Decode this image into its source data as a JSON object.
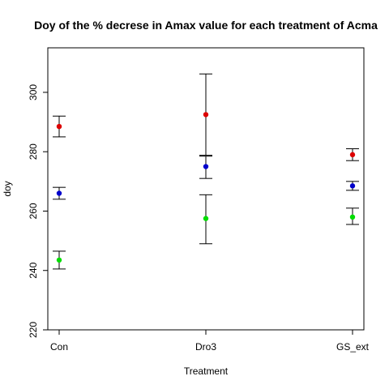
{
  "chart_data": {
    "type": "scatter",
    "title": "Doy of the % decrese in Amax value for each treatment of Acma",
    "xlabel": "Treatment",
    "ylabel": "doy",
    "categories": [
      "Con",
      "Dro3",
      "GS_ext"
    ],
    "ylim": [
      220,
      315
    ],
    "yticks": [
      220,
      240,
      260,
      280,
      300
    ],
    "grid": false,
    "legend": "none",
    "series": [
      {
        "color": "#dd0000",
        "values": [
          288.5,
          292.5,
          279
        ],
        "lower": [
          285,
          278.8,
          277
        ],
        "upper": [
          292,
          306.2,
          281
        ]
      },
      {
        "color": "#0000cc",
        "values": [
          266,
          275,
          268.5
        ],
        "lower": [
          264,
          271,
          267
        ],
        "upper": [
          268,
          278.5,
          270
        ]
      },
      {
        "color": "#00dd00",
        "values": [
          243.5,
          257.5,
          258
        ],
        "lower": [
          240.5,
          249,
          255.5
        ],
        "upper": [
          246.5,
          265.5,
          261
        ]
      }
    ]
  }
}
